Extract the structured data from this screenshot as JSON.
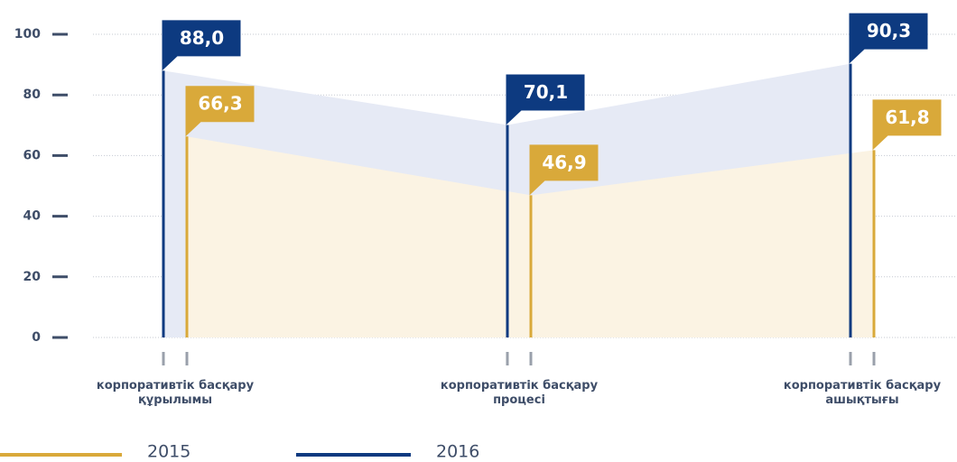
{
  "chart_data": {
    "type": "line",
    "categories": [
      "корпоративтік басқару құрылымы",
      "корпоративтік басқару процесі",
      "корпоративтік басқару ашықтығы"
    ],
    "series": [
      {
        "name": "2015",
        "color": "#d9a93a",
        "area_color": "#fbf3e3",
        "values": [
          66.3,
          46.9,
          61.8
        ],
        "value_labels": [
          "66,3",
          "46,9",
          "61,8"
        ]
      },
      {
        "name": "2016",
        "color": "#0d3a80",
        "area_color": "#e6eaf5",
        "values": [
          88.0,
          70.1,
          90.3
        ],
        "value_labels": [
          "88,0",
          "70,1",
          "90,3"
        ]
      }
    ],
    "ylim": [
      0,
      100
    ],
    "yticks": [
      0,
      20,
      40,
      60,
      80,
      100
    ],
    "grid": true
  }
}
